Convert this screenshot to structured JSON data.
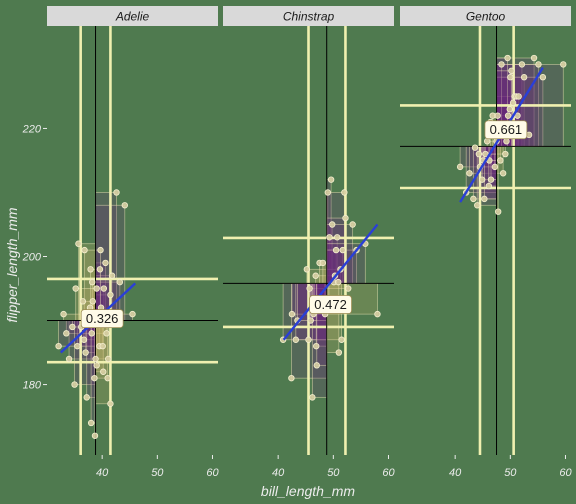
{
  "chart_data": {
    "type": "scatter",
    "title": "",
    "xlabel": "bill_length_mm",
    "ylabel": "flipper_length_mm",
    "xlim": [
      30,
      61
    ],
    "ylim": [
      169,
      236
    ],
    "x_ticks": [
      "40",
      "50",
      "60"
    ],
    "y_ticks": [
      "180",
      "200",
      "220"
    ],
    "grid": false,
    "background": "#4f7a4f",
    "colors": {
      "fit_line": "#2a3fd6",
      "guide_line": "#f0f0b0",
      "mean_line": "#000000",
      "point": "#f0f0b0",
      "box_fill_light": "#c9b36a",
      "box_fill_dark": "#6b2a7a",
      "strip_bg": "#d9d9d9"
    },
    "panels": [
      {
        "name": "Adelie",
        "correlation_label": "0.326",
        "corr_pos": [
          40,
          190.3
        ],
        "mean": [
          38.8,
          190.0
        ],
        "sd_x_lines": [
          36.1,
          41.5
        ],
        "sd_y_lines": [
          183.5,
          196.5
        ],
        "fit": {
          "x": [
            32.5,
            46.0
          ],
          "y": [
            185.0,
            195.8
          ]
        },
        "points": [
          [
            34.0,
            184
          ],
          [
            35.5,
            186
          ],
          [
            36.2,
            189
          ],
          [
            36.7,
            187
          ],
          [
            37.0,
            185
          ],
          [
            37.5,
            190
          ],
          [
            37.8,
            192
          ],
          [
            38.1,
            188
          ],
          [
            38.3,
            193
          ],
          [
            38.6,
            181
          ],
          [
            38.8,
            184
          ],
          [
            39.0,
            195
          ],
          [
            39.2,
            190
          ],
          [
            39.5,
            186
          ],
          [
            39.6,
            198
          ],
          [
            39.8,
            192
          ],
          [
            40.1,
            186
          ],
          [
            40.3,
            195
          ],
          [
            40.6,
            199
          ],
          [
            40.8,
            188
          ],
          [
            41.1,
            184
          ],
          [
            41.5,
            194
          ],
          [
            41.8,
            197
          ],
          [
            42.2,
            190
          ],
          [
            42.6,
            210
          ],
          [
            43.2,
            196
          ],
          [
            44.1,
            208
          ],
          [
            45.5,
            191
          ],
          [
            35.7,
            202
          ],
          [
            36.8,
            201
          ],
          [
            33.5,
            188
          ],
          [
            32.1,
            186
          ],
          [
            35.0,
            180
          ],
          [
            37.2,
            178
          ],
          [
            38.0,
            174
          ],
          [
            38.7,
            172
          ],
          [
            39.0,
            183
          ],
          [
            40.2,
            182
          ],
          [
            41.0,
            181
          ],
          [
            41.5,
            177
          ],
          [
            36.5,
            193
          ],
          [
            37.9,
            198
          ],
          [
            39.7,
            201
          ],
          [
            38.2,
            196
          ],
          [
            40.7,
            191
          ],
          [
            34.6,
            189
          ],
          [
            33.0,
            191
          ],
          [
            35.2,
            195
          ]
        ]
      },
      {
        "name": "Chinstrap",
        "correlation_label": "0.472",
        "corr_pos": [
          49.5,
          192.5
        ],
        "mean": [
          48.8,
          195.8
        ],
        "sd_x_lines": [
          45.5,
          52.2
        ],
        "sd_y_lines": [
          189.0,
          202.9
        ],
        "fit": {
          "x": [
            41.0,
            58.0
          ],
          "y": [
            187.0,
            205.0
          ]
        },
        "points": [
          [
            40.9,
            187
          ],
          [
            42.4,
            181
          ],
          [
            42.5,
            191
          ],
          [
            43.2,
            187
          ],
          [
            43.5,
            190
          ],
          [
            45.2,
            198
          ],
          [
            45.5,
            187
          ],
          [
            45.7,
            195
          ],
          [
            45.9,
            190
          ],
          [
            46.1,
            193
          ],
          [
            46.4,
            191
          ],
          [
            46.6,
            193
          ],
          [
            46.8,
            197
          ],
          [
            46.9,
            186
          ],
          [
            47.5,
            199
          ],
          [
            48.1,
            199
          ],
          [
            48.5,
            191
          ],
          [
            49.0,
            210
          ],
          [
            49.3,
            203
          ],
          [
            49.6,
            212
          ],
          [
            49.8,
            205
          ],
          [
            50.1,
            196
          ],
          [
            50.3,
            197
          ],
          [
            50.5,
            201
          ],
          [
            50.7,
            203
          ],
          [
            50.9,
            196
          ],
          [
            51.3,
            198
          ],
          [
            51.5,
            187
          ],
          [
            51.7,
            201
          ],
          [
            52.0,
            210
          ],
          [
            52.2,
            206
          ],
          [
            52.7,
            195
          ],
          [
            53.5,
            205
          ],
          [
            54.2,
            201
          ],
          [
            55.8,
            202
          ],
          [
            58.0,
            191
          ],
          [
            46.2,
            178
          ],
          [
            47.0,
            183
          ],
          [
            51.0,
            185
          ],
          [
            49.2,
            192
          ]
        ]
      },
      {
        "name": "Gentoo",
        "correlation_label": "0.661",
        "corr_pos": [
          49.2,
          219.8
        ],
        "mean": [
          47.5,
          217.2
        ],
        "sd_x_lines": [
          44.5,
          50.6
        ],
        "sd_y_lines": [
          210.7,
          223.6
        ],
        "fit": {
          "x": [
            40.9,
            55.9
          ],
          "y": [
            208.5,
            229.5
          ]
        },
        "points": [
          [
            40.9,
            214
          ],
          [
            42.0,
            210
          ],
          [
            42.6,
            213
          ],
          [
            43.3,
            209
          ],
          [
            43.6,
            217
          ],
          [
            44.0,
            208
          ],
          [
            44.5,
            214
          ],
          [
            44.9,
            212
          ],
          [
            45.1,
            215
          ],
          [
            45.3,
            209
          ],
          [
            45.5,
            216
          ],
          [
            45.8,
            218
          ],
          [
            46.1,
            211
          ],
          [
            46.2,
            215
          ],
          [
            46.5,
            212
          ],
          [
            46.8,
            222
          ],
          [
            47.2,
            214
          ],
          [
            47.5,
            218
          ],
          [
            47.8,
            207
          ],
          [
            48.2,
            215
          ],
          [
            48.5,
            220
          ],
          [
            48.7,
            213
          ],
          [
            49.1,
            216
          ],
          [
            49.3,
            218
          ],
          [
            49.6,
            222
          ],
          [
            49.9,
            223
          ],
          [
            50.0,
            228
          ],
          [
            50.4,
            220
          ],
          [
            50.5,
            224
          ],
          [
            50.8,
            225
          ],
          [
            51.1,
            225
          ],
          [
            51.3,
            222
          ],
          [
            51.5,
            225
          ],
          [
            52.1,
            230
          ],
          [
            52.5,
            228
          ],
          [
            53.4,
            219
          ],
          [
            54.3,
            231
          ],
          [
            55.1,
            230
          ],
          [
            55.9,
            228
          ],
          [
            59.6,
            230
          ],
          [
            44.3,
            216
          ],
          [
            46.4,
            221
          ],
          [
            47.7,
            222
          ],
          [
            48.4,
            230
          ],
          [
            49.5,
            231
          ],
          [
            50.2,
            229
          ]
        ]
      }
    ]
  }
}
